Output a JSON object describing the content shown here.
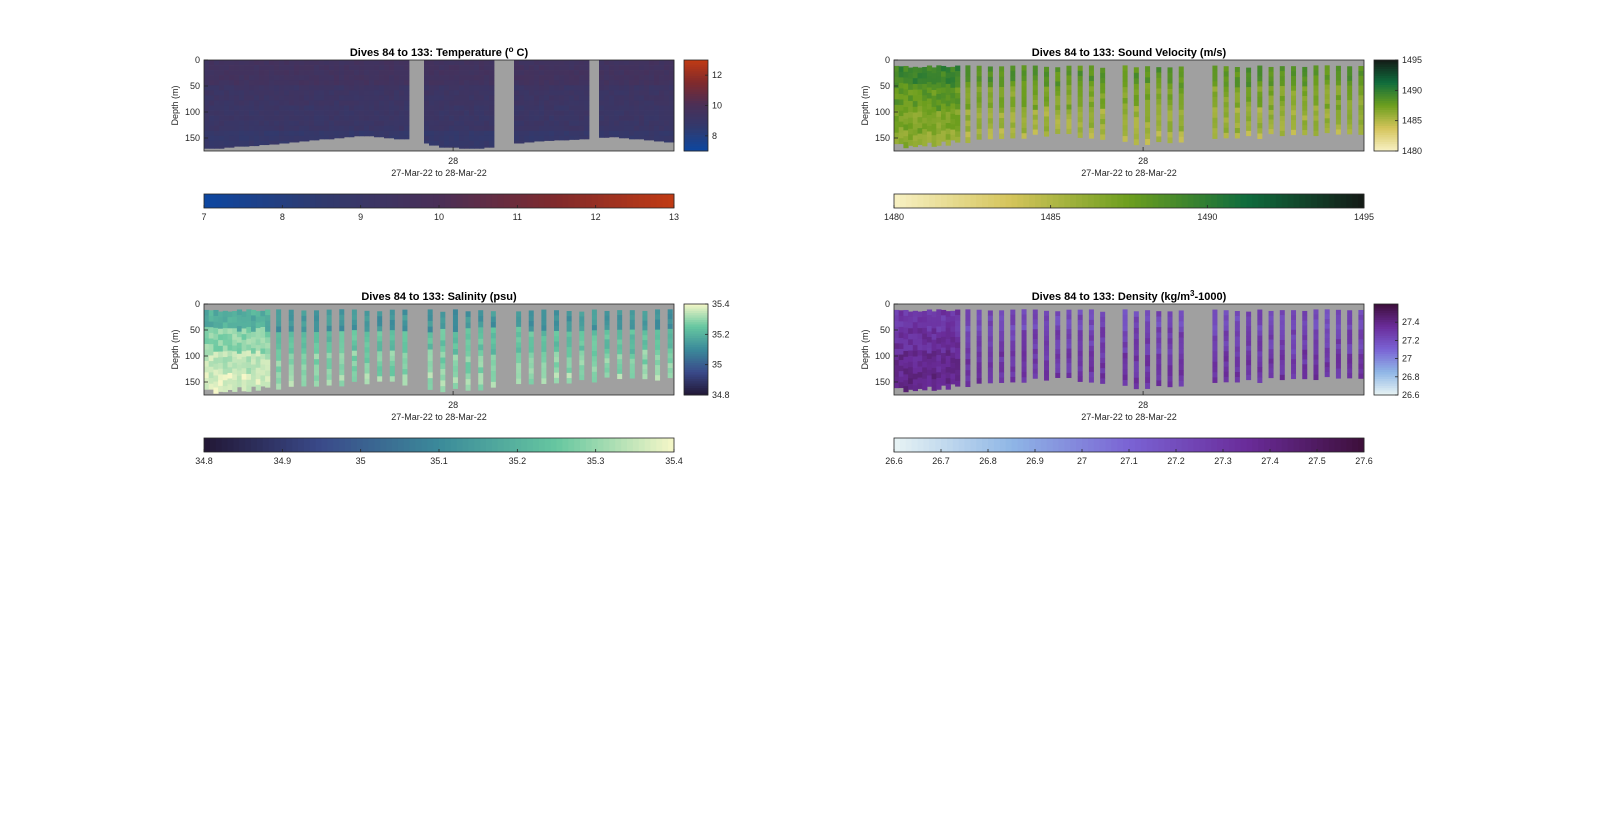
{
  "chart_data": [
    {
      "type": "heatmap",
      "title": "Dives 84 to 133: Temperature (",
      "title_sup": "o",
      "title_suffix": " C)",
      "ylabel": "Depth (m)",
      "yticks": [
        "0",
        "50",
        "100",
        "150"
      ],
      "ylim": [
        0,
        175
      ],
      "y_reversed": true,
      "xtick": "28",
      "xlabel": "27-Mar-22 to 28-Mar-22",
      "colormap": [
        "#0d47a1",
        "#303a6e",
        "#4a2f57",
        "#802a2c",
        "#c13a13"
      ],
      "clim": [
        7,
        13
      ],
      "colorbar_right_ticks": [
        "8",
        "10",
        "12"
      ],
      "colorbar_bottom_ticks": [
        "7",
        "8",
        "9",
        "10",
        "11",
        "12",
        "13"
      ],
      "levels": [
        0.42,
        0.37,
        0.35,
        0.3
      ],
      "profile_depths": [
        170,
        170,
        168,
        166,
        165,
        163,
        162,
        160,
        158,
        156,
        154,
        152,
        150,
        148,
        146,
        146,
        148,
        150,
        152,
        156,
        160,
        164,
        168,
        168,
        170,
        170,
        168,
        165,
        162,
        160,
        158,
        156,
        155,
        154,
        153,
        152,
        150,
        149,
        148,
        150,
        152,
        154,
        156,
        158
      ],
      "gaps": [
        [
          0.44,
          0.47
        ],
        [
          0.62,
          0.66
        ],
        [
          0.82,
          0.84
        ]
      ],
      "mode": "continuous"
    },
    {
      "type": "heatmap",
      "title": "Dives 84 to 133: Sound Velocity (m/s)",
      "ylabel": "Depth (m)",
      "yticks": [
        "0",
        "50",
        "100",
        "150"
      ],
      "ylim": [
        0,
        175
      ],
      "y_reversed": true,
      "xtick": "28",
      "xlabel": "27-Mar-22 to 28-Mar-22",
      "colormap": [
        "#f8f1c4",
        "#d4c45a",
        "#6c9e1e",
        "#0f6c3d",
        "#141a16"
      ],
      "clim": [
        1480,
        1495
      ],
      "colorbar_right_ticks": [
        "1480",
        "1485",
        "1490",
        "1495"
      ],
      "colorbar_bottom_ticks": [
        "1480",
        "1485",
        "1490",
        "1495"
      ],
      "levels": [
        0.55,
        0.45,
        0.38,
        0.34
      ],
      "profile_depths": [
        165,
        164,
        163,
        160,
        158,
        155,
        152,
        150,
        148,
        146,
        146,
        145,
        145,
        146,
        148,
        150,
        155,
        160,
        165,
        165,
        162,
        158,
        156,
        154,
        152,
        150,
        148,
        147,
        146,
        146,
        145,
        144,
        144,
        145,
        146,
        148
      ],
      "gaps": [
        [
          0.44,
          0.47
        ],
        [
          0.62,
          0.66
        ]
      ],
      "mode": "stripes"
    },
    {
      "type": "heatmap",
      "title": "Dives 84 to 133: Salinity (psu)",
      "ylabel": "Depth (m)",
      "yticks": [
        "0",
        "50",
        "100",
        "150"
      ],
      "ylim": [
        0,
        175
      ],
      "y_reversed": true,
      "xtick": "28",
      "xlabel": "27-Mar-22 to 28-Mar-22",
      "colormap": [
        "#221735",
        "#3a4a8a",
        "#3b8a9a",
        "#66c7a0",
        "#f6f7c8"
      ],
      "clim": [
        34.8,
        35.4
      ],
      "colorbar_right_ticks": [
        "34.8",
        "35",
        "35.2",
        "35.4"
      ],
      "colorbar_bottom_ticks": [
        "34.8",
        "34.9",
        "35",
        "35.1",
        "35.2",
        "35.3",
        "35.4"
      ],
      "levels": [
        0.55,
        0.72,
        0.8,
        0.85
      ],
      "profile_depths": [
        168,
        166,
        164,
        162,
        160,
        158,
        156,
        155,
        154,
        153,
        152,
        152,
        153,
        155,
        158,
        162,
        166,
        168,
        168,
        165,
        160,
        156,
        154,
        152,
        150,
        148,
        146,
        145,
        144,
        144,
        145,
        146
      ],
      "gaps": [
        [
          0.44,
          0.47
        ],
        [
          0.62,
          0.66
        ]
      ],
      "mode": "stripes"
    },
    {
      "type": "heatmap",
      "title": "Dives 84 to 133: Density (kg/m",
      "title_sup": "3",
      "title_suffix": "-1000)",
      "ylabel": "Depth (m)",
      "yticks": [
        "0",
        "50",
        "100",
        "150"
      ],
      "ylim": [
        0,
        175
      ],
      "y_reversed": true,
      "xtick": "28",
      "xlabel": "27-Mar-22 to 28-Mar-22",
      "colormap": [
        "#e8f4f4",
        "#8fb6e6",
        "#7a63d4",
        "#6a2c9a",
        "#3d0f3a"
      ],
      "clim": [
        26.6,
        27.6
      ],
      "colorbar_right_ticks": [
        "26.6",
        "26.8",
        "27",
        "27.2",
        "27.4"
      ],
      "colorbar_bottom_ticks": [
        "26.6",
        "26.7",
        "26.8",
        "26.9",
        "27",
        "27.1",
        "27.2",
        "27.3",
        "27.4",
        "27.5",
        "27.6"
      ],
      "levels": [
        0.62,
        0.66,
        0.7,
        0.72
      ],
      "profile_depths": [
        165,
        164,
        163,
        160,
        158,
        155,
        152,
        150,
        148,
        146,
        146,
        145,
        145,
        146,
        148,
        150,
        155,
        160,
        165,
        165,
        162,
        158,
        156,
        154,
        152,
        150,
        148,
        147,
        146,
        146,
        145,
        144,
        144,
        145,
        146,
        148
      ],
      "gaps": [
        [
          0.44,
          0.47
        ],
        [
          0.62,
          0.66
        ]
      ],
      "mode": "stripes"
    }
  ]
}
